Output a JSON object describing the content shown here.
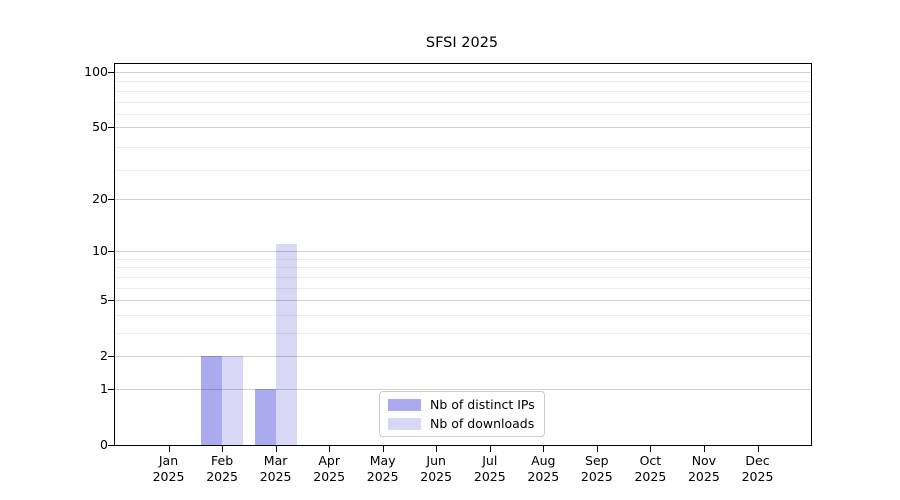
{
  "chart_data": {
    "type": "bar",
    "title": "SFSI 2025",
    "categories": [
      "Jan",
      "Feb",
      "Mar",
      "Apr",
      "May",
      "Jun",
      "Jul",
      "Aug",
      "Sep",
      "Oct",
      "Nov",
      "Dec"
    ],
    "category_year": "2025",
    "series": [
      {
        "name": "Nb of distinct IPs",
        "color": "#aaaaee",
        "values": [
          0,
          2,
          1,
          0,
          0,
          0,
          0,
          0,
          0,
          0,
          0,
          0
        ]
      },
      {
        "name": "Nb of downloads",
        "color": "#d8d8f6",
        "values": [
          0,
          2,
          11,
          0,
          0,
          0,
          0,
          0,
          0,
          0,
          0,
          0
        ]
      }
    ],
    "xlabel": "",
    "ylabel": "",
    "yscale": "log10(1+y)",
    "yticks": [
      0,
      1,
      2,
      5,
      10,
      20,
      50,
      100
    ],
    "minor_gridlines": [
      3,
      4,
      6,
      7,
      8,
      9,
      29,
      39,
      59,
      69,
      79,
      89
    ],
    "ylim": [
      0,
      111
    ],
    "grid": "horizontal major and minor",
    "legend_position": "inside bottom-center",
    "colors": {
      "spine": "#000000",
      "text": "#000000",
      "background": "#ffffff"
    }
  }
}
